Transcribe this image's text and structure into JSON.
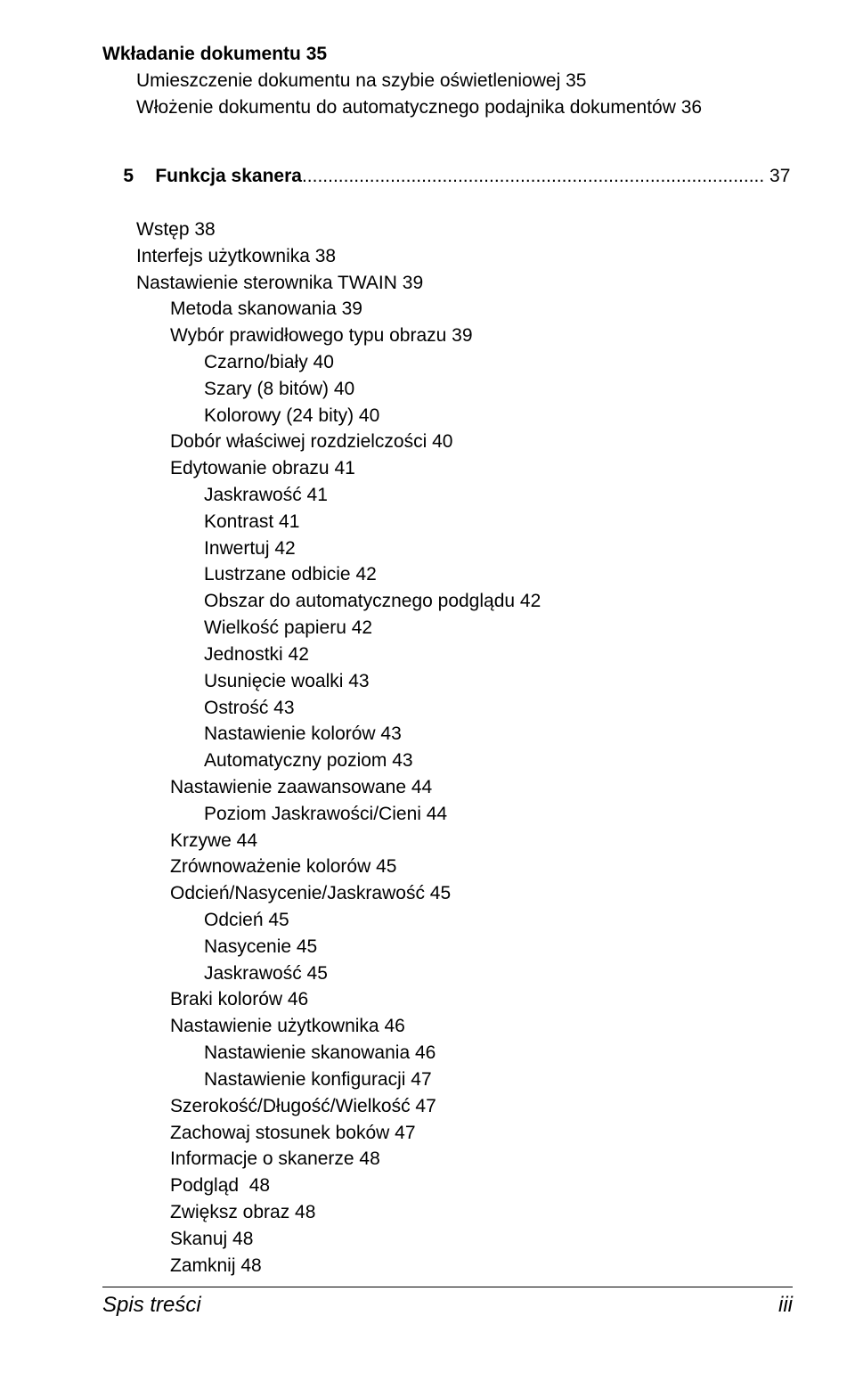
{
  "lines": [
    {
      "text": "Wkładanie dokumentu 35",
      "indent": "i0",
      "bold": true
    },
    {
      "text": "Umieszczenie dokumentu na szybie oświetleniowej 35",
      "indent": "i1",
      "bold": false
    },
    {
      "text": "Włożenie dokumentu do automatycznego podajnika dokumentów 36",
      "indent": "i1",
      "bold": false
    }
  ],
  "chapter": {
    "num": "5",
    "title": "Funkcja skanera",
    "dots": "......................................................................................... ",
    "page": "37"
  },
  "lines2": [
    {
      "text": "Wstęp 38",
      "indent": "i1",
      "bold": false
    },
    {
      "text": "Interfejs użytkownika 38",
      "indent": "i1",
      "bold": false
    },
    {
      "text": "Nastawienie sterownika TWAIN 39",
      "indent": "i1",
      "bold": false
    },
    {
      "text": "Metoda skanowania 39",
      "indent": "i2",
      "bold": false
    },
    {
      "text": "Wybór prawidłowego typu obrazu 39",
      "indent": "i2",
      "bold": false
    },
    {
      "text": "Czarno/biały 40",
      "indent": "i3",
      "bold": false
    },
    {
      "text": "Szary (8 bitów) 40",
      "indent": "i3",
      "bold": false
    },
    {
      "text": "Kolorowy (24 bity) 40",
      "indent": "i3",
      "bold": false
    },
    {
      "text": "Dobór właściwej rozdzielczości 40",
      "indent": "i2",
      "bold": false
    },
    {
      "text": "Edytowanie obrazu 41",
      "indent": "i2",
      "bold": false
    },
    {
      "text": "Jaskrawość 41",
      "indent": "i3",
      "bold": false
    },
    {
      "text": "Kontrast 41",
      "indent": "i3",
      "bold": false
    },
    {
      "text": "Inwertuj 42",
      "indent": "i3",
      "bold": false
    },
    {
      "text": "Lustrzane odbicie 42",
      "indent": "i3",
      "bold": false
    },
    {
      "text": "Obszar do automatycznego podglądu 42",
      "indent": "i3",
      "bold": false
    },
    {
      "text": "Wielkość papieru 42",
      "indent": "i3",
      "bold": false
    },
    {
      "text": "Jednostki 42",
      "indent": "i3",
      "bold": false
    },
    {
      "text": "Usunięcie woalki 43",
      "indent": "i3",
      "bold": false
    },
    {
      "text": "Ostrość 43",
      "indent": "i3",
      "bold": false
    },
    {
      "text": "Nastawienie kolorów 43",
      "indent": "i3",
      "bold": false
    },
    {
      "text": "Automatyczny poziom 43",
      "indent": "i3",
      "bold": false
    },
    {
      "text": "Nastawienie zaawansowane 44",
      "indent": "i2",
      "bold": false
    },
    {
      "text": "Poziom Jaskrawości/Cieni 44",
      "indent": "i3",
      "bold": false
    },
    {
      "text": "Krzywe 44",
      "indent": "i2",
      "bold": false
    },
    {
      "text": "Zrównoważenie kolorów 45",
      "indent": "i2",
      "bold": false
    },
    {
      "text": "Odcień/Nasycenie/Jaskrawość 45",
      "indent": "i2",
      "bold": false
    },
    {
      "text": "Odcień 45",
      "indent": "i3",
      "bold": false
    },
    {
      "text": "Nasycenie 45",
      "indent": "i3",
      "bold": false
    },
    {
      "text": "Jaskrawość 45",
      "indent": "i3",
      "bold": false
    },
    {
      "text": "Braki kolorów 46",
      "indent": "i2",
      "bold": false
    },
    {
      "text": "Nastawienie użytkownika 46",
      "indent": "i2",
      "bold": false
    },
    {
      "text": "Nastawienie skanowania 46",
      "indent": "i3",
      "bold": false
    },
    {
      "text": "Nastawienie konfiguracji 47",
      "indent": "i3",
      "bold": false
    },
    {
      "text": "Szerokość/Długość/Wielkość 47",
      "indent": "i2",
      "bold": false
    },
    {
      "text": "Zachowaj stosunek boków 47",
      "indent": "i2",
      "bold": false
    },
    {
      "text": "Informacje o skanerze 48",
      "indent": "i2",
      "bold": false
    },
    {
      "text": "Podgląd  48",
      "indent": "i2",
      "bold": false
    },
    {
      "text": "Zwiększ obraz 48",
      "indent": "i2",
      "bold": false
    },
    {
      "text": "Skanuj 48",
      "indent": "i2",
      "bold": false
    },
    {
      "text": "Zamknij 48",
      "indent": "i2",
      "bold": false
    }
  ],
  "footer": {
    "left": "Spis treści",
    "right": "iii"
  }
}
